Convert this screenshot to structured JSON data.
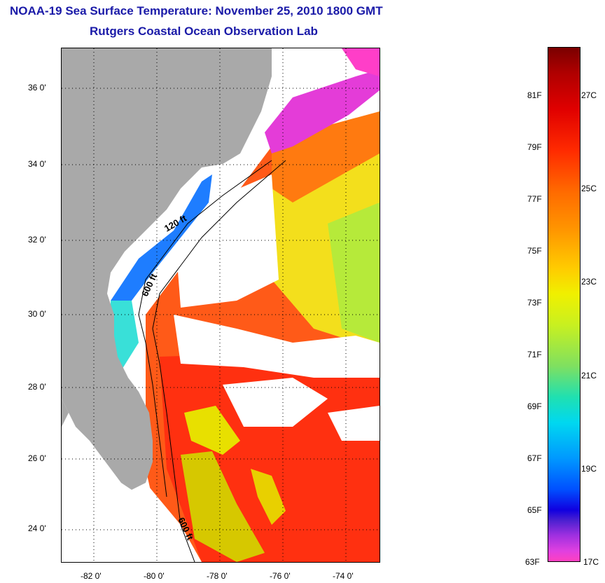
{
  "header": {
    "title": "NOAA-19 Sea Surface Temperature:  November 25, 2010 1800 GMT",
    "subtitle": "Rutgers Coastal Ocean Observation Lab"
  },
  "map": {
    "lat_labels": [
      "36 0'",
      "34 0'",
      "32 0'",
      "30 0'",
      "28 0'",
      "26 0'",
      "24 0'"
    ],
    "lon_labels": [
      "-82 0'",
      "-80 0'",
      "-78 0'",
      "-76 0'",
      "-74 0'"
    ],
    "contour_labels": [
      "120 ft",
      "600 ft",
      "600 ft"
    ],
    "colors": {
      "land": "#a9a9a9",
      "cloud": "#ffffff"
    }
  },
  "colorbar": {
    "fahrenheit_labels": [
      "81F",
      "79F",
      "77F",
      "75F",
      "73F",
      "71F",
      "69F",
      "67F",
      "65F",
      "63F"
    ],
    "celsius_labels": [
      "27C",
      "25C",
      "23C",
      "21C",
      "19C",
      "17C"
    ]
  }
}
